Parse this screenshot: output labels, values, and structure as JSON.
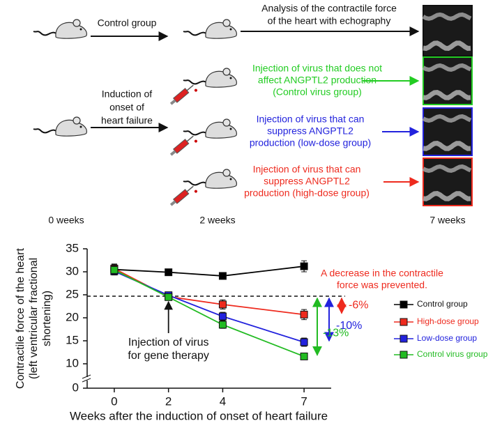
{
  "diagram": {
    "control_label": "Control group",
    "analysis_label": [
      "Analysis of the contractile force",
      "of the heart with echography"
    ],
    "induction_label": [
      "Induction of",
      "onset of",
      "heart failure"
    ],
    "groups": [
      {
        "label": [
          "Injection of virus that does not",
          "affect ANGPTL2 production",
          "(Control virus group)"
        ],
        "color": "#22cc22"
      },
      {
        "label": [
          "Injection of virus that can",
          "suppress ANGPTL2",
          "production (low-dose group)"
        ],
        "color": "#2222dd"
      },
      {
        "label": [
          "Injection of virus that can",
          "suppress ANGPTL2",
          "production (high-dose group)"
        ],
        "color": "#ee2a1e"
      }
    ],
    "time_labels": [
      "0 weeks",
      "2 weeks",
      "7 weeks"
    ]
  },
  "chart_data": {
    "type": "line",
    "x": [
      0,
      2,
      4,
      7
    ],
    "xlim": [
      -1,
      8
    ],
    "xticks": [
      0,
      2,
      4,
      7
    ],
    "ylim": [
      0,
      35
    ],
    "yticks": [
      0,
      10,
      15,
      20,
      25,
      30,
      35
    ],
    "y_break": [
      0,
      10
    ],
    "x_label": "Weeks after the induction of onset of heart failure",
    "y_label": [
      "Contractile force of the heart",
      "(left ventricular fractional",
      "shortening)"
    ],
    "series": [
      {
        "name": "Control group",
        "color": "#000000",
        "values": [
          30.5,
          29.9,
          29.1,
          31.2
        ],
        "errors": [
          1.1,
          0.7,
          0.7,
          1.2
        ]
      },
      {
        "name": "High-dose group",
        "color": "#ee2a1e",
        "values": [
          30.7,
          24.6,
          22.9,
          20.7
        ],
        "errors": [
          1.0,
          0.8,
          1.0,
          1.1
        ]
      },
      {
        "name": "Low-dose group",
        "color": "#2222dd",
        "values": [
          30.1,
          24.9,
          20.3,
          14.7
        ],
        "errors": [
          0.8,
          0.7,
          0.9,
          0.9
        ]
      },
      {
        "name": "Control virus group",
        "color": "#22bb22",
        "values": [
          30.4,
          24.5,
          18.5,
          11.6
        ],
        "errors": [
          0.9,
          0.7,
          0.8,
          0.6
        ]
      }
    ],
    "reference_line": 24.7,
    "annotations": {
      "prevented": [
        "A decrease in the contractile",
        "force was prevented."
      ],
      "injection": [
        "Injection of virus",
        "for gene therapy"
      ],
      "drop_labels": [
        "-6%",
        "-10%",
        "-13%"
      ]
    }
  }
}
